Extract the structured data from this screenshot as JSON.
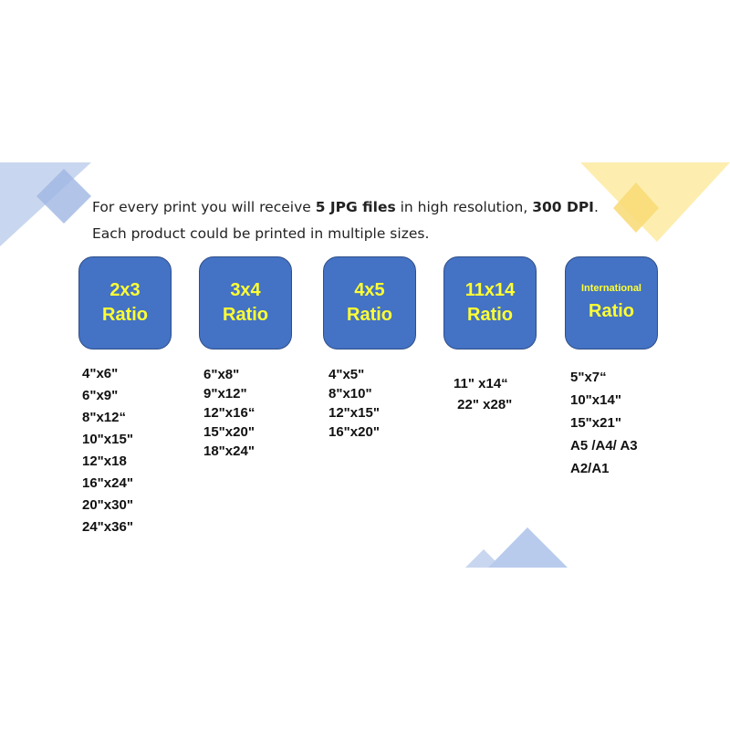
{
  "intro": {
    "line1_a": "For every print you will receive ",
    "line1_b": "5 JPG files",
    "line1_c": " in high resolution, ",
    "line1_d": "300 DPI",
    "line1_e": ".",
    "line2": "Each product could be printed in multiple sizes."
  },
  "colors": {
    "box": "#4472c4",
    "box_text": "#ffff33",
    "deco_blue": "#aec3e8",
    "deco_yellow": "#fde89a"
  },
  "ratios": [
    {
      "line1": "2x3",
      "line2": "Ratio",
      "sizes": [
        "4\"x6\"",
        "6\"x9\"",
        "8\"x12“",
        "10\"x15\"",
        "12\"x18",
        "16\"x24\"",
        "20\"x30\"",
        "24\"x36\""
      ]
    },
    {
      "line1": "3x4",
      "line2": "Ratio",
      "sizes": [
        "6\"x8\"",
        "9\"x12\"",
        "12\"x16“",
        "15\"x20\"",
        "18\"x24\""
      ]
    },
    {
      "line1": "4x5",
      "line2": "Ratio",
      "sizes": [
        "4\"x5\"",
        "8\"x10\"",
        "12\"x15\"",
        "16\"x20\""
      ]
    },
    {
      "line1": "11x14",
      "line2": "Ratio",
      "sizes": [
        "11\" x14“",
        " 22\" x28\""
      ]
    },
    {
      "line1": "International",
      "line2": "Ratio",
      "sizes": [
        "5\"x7“",
        "10\"x14\"",
        "15\"x21\"",
        "A5 /A4/ A3",
        "A2/A1"
      ]
    }
  ]
}
